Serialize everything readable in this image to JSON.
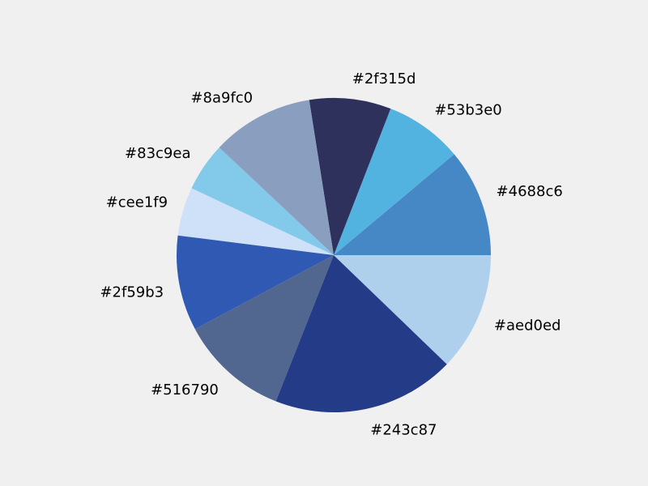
{
  "chart_data": {
    "type": "pie",
    "title": "",
    "start_angle_deg": 0,
    "direction": "counterclockwise",
    "slices": [
      {
        "label": "#4688c6",
        "value": 11.1,
        "color": "#4688c6"
      },
      {
        "label": "#53b3e0",
        "value": 8.0,
        "color": "#53b3e0"
      },
      {
        "label": "#2f315d",
        "value": 8.4,
        "color": "#2f315d"
      },
      {
        "label": "#8a9fc0",
        "value": 10.5,
        "color": "#8a9fc0"
      },
      {
        "label": "#83c9ea",
        "value": 5.0,
        "color": "#83c9ea"
      },
      {
        "label": "#cee1f9",
        "value": 5.0,
        "color": "#cee1f9"
      },
      {
        "label": "#2f59b3",
        "value": 9.8,
        "color": "#2f59b3"
      },
      {
        "label": "#516790",
        "value": 11.2,
        "color": "#516790"
      },
      {
        "label": "#243c87",
        "value": 18.8,
        "color": "#243c87"
      },
      {
        "label": "#aed0ed",
        "value": 12.2,
        "color": "#aed0ed"
      }
    ]
  }
}
